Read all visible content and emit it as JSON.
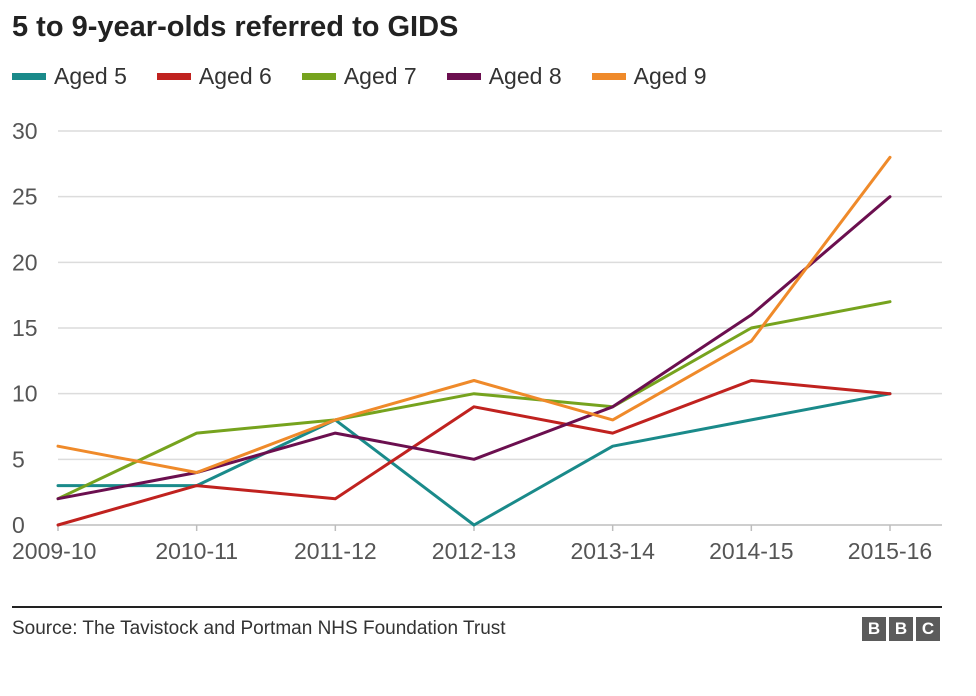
{
  "title": "5 to 9-year-olds referred to GIDS",
  "legend": [
    {
      "label": "Aged 5",
      "color": "#1a8a8a"
    },
    {
      "label": "Aged 6",
      "color": "#c0221f"
    },
    {
      "label": "Aged 7",
      "color": "#76a31e"
    },
    {
      "label": "Aged 8",
      "color": "#6b0f4f"
    },
    {
      "label": "Aged 9",
      "color": "#ef8a2a"
    }
  ],
  "source": "Source: The Tavistock and Portman NHS Foundation Trust",
  "logo": [
    "B",
    "B",
    "C"
  ],
  "chart_data": {
    "type": "line",
    "title": "5 to 9-year-olds referred to GIDS",
    "xlabel": "",
    "ylabel": "",
    "categories": [
      "2009-10",
      "2010-11",
      "2011-12",
      "2012-13",
      "2013-14",
      "2014-15",
      "2015-16"
    ],
    "y_ticks": [
      0,
      5,
      10,
      15,
      20,
      25,
      30
    ],
    "ylim": [
      0,
      30
    ],
    "grid": true,
    "legend_position": "top-left",
    "series": [
      {
        "name": "Aged 5",
        "color": "#1a8a8a",
        "values": [
          3,
          3,
          8,
          0,
          6,
          8,
          10
        ]
      },
      {
        "name": "Aged 6",
        "color": "#c0221f",
        "values": [
          0,
          3,
          2,
          9,
          7,
          11,
          10
        ]
      },
      {
        "name": "Aged 7",
        "color": "#76a31e",
        "values": [
          2,
          7,
          8,
          10,
          9,
          15,
          17
        ]
      },
      {
        "name": "Aged 8",
        "color": "#6b0f4f",
        "values": [
          2,
          4,
          7,
          5,
          9,
          16,
          25
        ]
      },
      {
        "name": "Aged 9",
        "color": "#ef8a2a",
        "values": [
          6,
          4,
          8,
          11,
          8,
          14,
          28
        ]
      }
    ]
  }
}
